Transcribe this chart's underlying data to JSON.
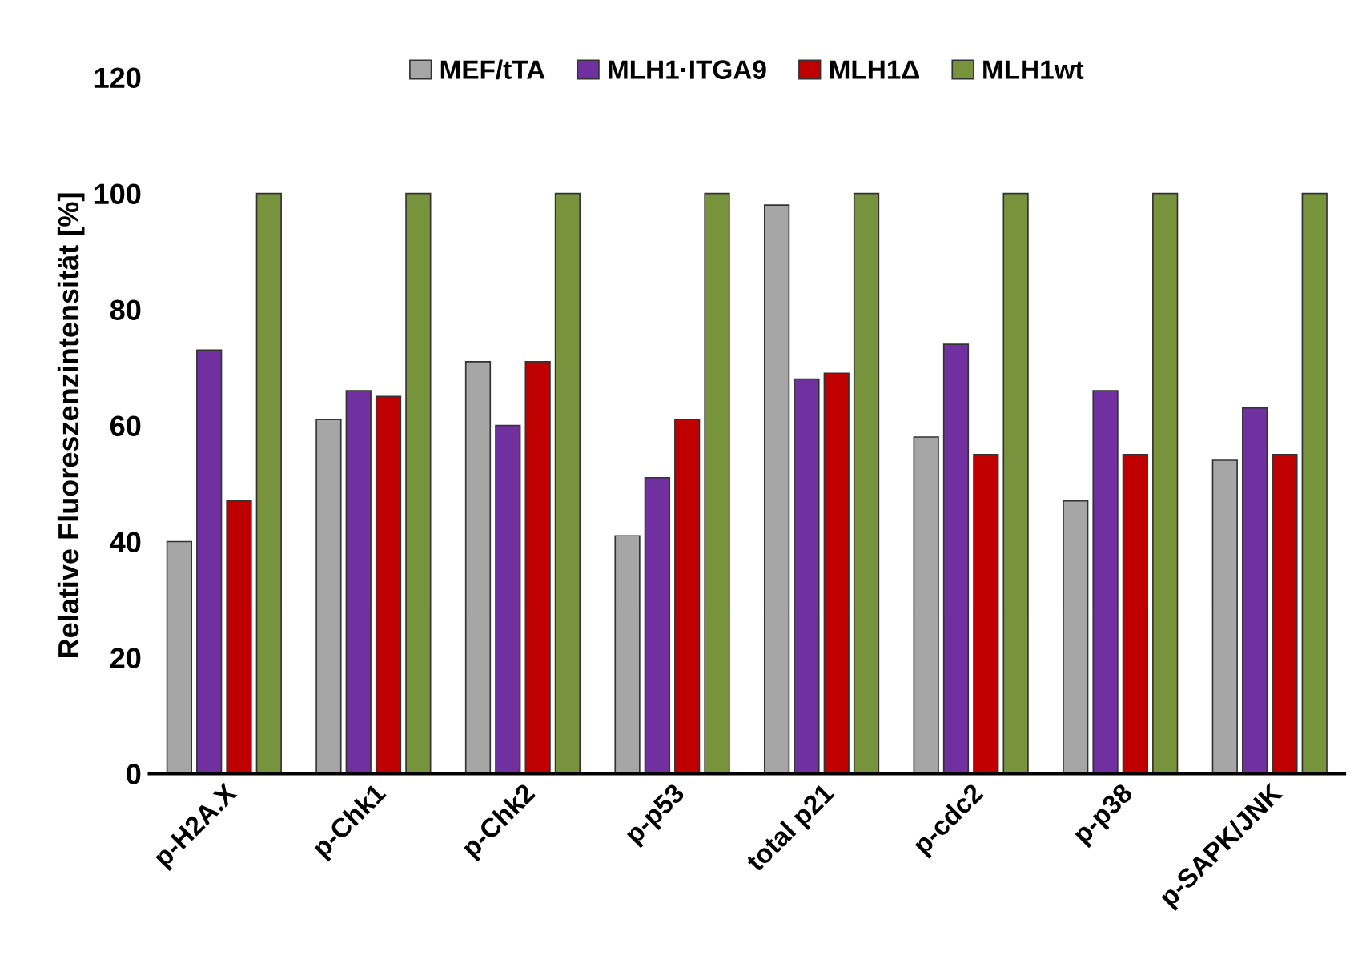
{
  "chart_data": {
    "type": "bar",
    "ylabel": "Relative Fluoreszenzintensität [%]",
    "categories": [
      "p-H2A.X",
      "p-Chk1",
      "p-Chk2",
      "p-p53",
      "total p21",
      "p-cdc2",
      "p-p38",
      "p-SAPK/JNK"
    ],
    "series": [
      {
        "name": "MEF/tTA",
        "color": "#a6a6a6",
        "values": [
          40,
          61,
          71,
          41,
          98,
          58,
          47,
          54
        ]
      },
      {
        "name": "MLH1·ITGA9",
        "color": "#7030a0",
        "values": [
          73,
          66,
          60,
          51,
          68,
          74,
          66,
          63
        ]
      },
      {
        "name": "MLH1Δ",
        "color": "#c00000",
        "values": [
          47,
          65,
          71,
          61,
          69,
          55,
          55,
          55
        ]
      },
      {
        "name": "MLH1wt",
        "color": "#77933c",
        "values": [
          100,
          100,
          100,
          100,
          100,
          100,
          100,
          100
        ]
      }
    ],
    "ylim": [
      0,
      120
    ],
    "yticks": [
      0,
      20,
      40,
      60,
      80,
      100,
      120
    ],
    "legend": "top",
    "grid": false
  }
}
